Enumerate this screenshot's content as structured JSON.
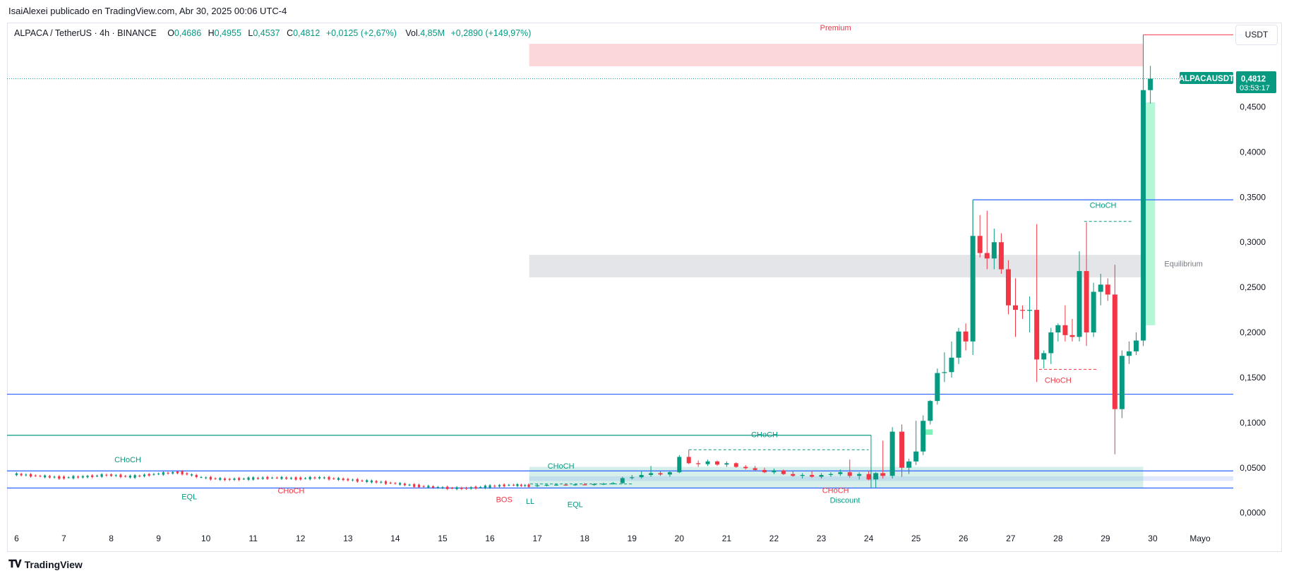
{
  "header": {
    "published": "IsaiAlexei publicado en TradingView.com, Abr 30, 2025 00:06 UTC-4"
  },
  "legend": {
    "symbol": "ALPACA / TetherUS · 4h · BINANCE",
    "o_key": "O",
    "o_val": "0,4686",
    "h_key": "H",
    "h_val": "0,4955",
    "l_key": "L",
    "l_val": "0,4537",
    "c_key": "C",
    "c_val": "0,4812",
    "change": "+0,0125 (+2,67%)",
    "vol_key": "Vol.",
    "vol_val": "4,85M",
    "vol_change": "+0,2890 (+149,97%)"
  },
  "currency_button": "USDT",
  "brand": {
    "name": "TradingView",
    "logo": "tv-logo-icon"
  },
  "colors": {
    "up": "#089981",
    "down": "#f23645",
    "accent": "#2962ff"
  },
  "chart_data": {
    "type": "candlestick",
    "symbol": "ALPACAUSDT",
    "timeframe": "4h",
    "y_ticks": [
      "0,4500",
      "0,4000",
      "0,3500",
      "0,3000",
      "0,2500",
      "0,2000",
      "0,1500",
      "0,1000",
      "0,0500",
      "0,0000"
    ],
    "y_tick_values": [
      0.45,
      0.4,
      0.35,
      0.3,
      0.25,
      0.2,
      0.15,
      0.1,
      0.05,
      0.0
    ],
    "ylim": [
      -0.012,
      0.52
    ],
    "x_ticks": [
      "6",
      "7",
      "8",
      "9",
      "10",
      "11",
      "12",
      "13",
      "14",
      "15",
      "16",
      "17",
      "18",
      "19",
      "20",
      "21",
      "22",
      "23",
      "24",
      "25",
      "26",
      "27",
      "28",
      "29",
      "30",
      "Mayo"
    ],
    "x_tick_days": [
      6,
      7,
      8,
      9,
      10,
      11,
      12,
      13,
      14,
      15,
      16,
      17,
      18,
      19,
      20,
      21,
      22,
      23,
      24,
      25,
      26,
      27,
      28,
      29,
      30,
      31
    ],
    "xlim_days": [
      5.8,
      31.7
    ],
    "last_price_tag": {
      "symbol": "ALPACAUSDT",
      "price": "0,4812",
      "countdown": "03:53:17",
      "value": 0.4812
    },
    "candles": [
      {
        "d": 17.0,
        "o": 0.03,
        "h": 0.032,
        "l": 0.0285,
        "c": 0.0305
      },
      {
        "d": 17.2,
        "o": 0.0305,
        "h": 0.032,
        "l": 0.0295,
        "c": 0.031
      },
      {
        "d": 17.4,
        "o": 0.031,
        "h": 0.0325,
        "l": 0.03,
        "c": 0.0312
      },
      {
        "d": 17.6,
        "o": 0.0312,
        "h": 0.0325,
        "l": 0.03,
        "c": 0.0308
      },
      {
        "d": 17.8,
        "o": 0.0308,
        "h": 0.0325,
        "l": 0.03,
        "c": 0.0315
      },
      {
        "d": 18.0,
        "o": 0.0315,
        "h": 0.033,
        "l": 0.0305,
        "c": 0.031
      },
      {
        "d": 18.2,
        "o": 0.031,
        "h": 0.033,
        "l": 0.03,
        "c": 0.0318
      },
      {
        "d": 18.4,
        "o": 0.0318,
        "h": 0.0335,
        "l": 0.0308,
        "c": 0.0322
      },
      {
        "d": 18.6,
        "o": 0.0322,
        "h": 0.034,
        "l": 0.0312,
        "c": 0.033
      },
      {
        "d": 18.8,
        "o": 0.033,
        "h": 0.04,
        "l": 0.032,
        "c": 0.0385
      },
      {
        "d": 19.0,
        "o": 0.0385,
        "h": 0.042,
        "l": 0.037,
        "c": 0.0395
      },
      {
        "d": 19.2,
        "o": 0.0395,
        "h": 0.046,
        "l": 0.038,
        "c": 0.042
      },
      {
        "d": 19.4,
        "o": 0.042,
        "h": 0.052,
        "l": 0.04,
        "c": 0.044
      },
      {
        "d": 19.6,
        "o": 0.044,
        "h": 0.047,
        "l": 0.041,
        "c": 0.0425
      },
      {
        "d": 19.8,
        "o": 0.0425,
        "h": 0.046,
        "l": 0.04,
        "c": 0.045
      },
      {
        "d": 20.0,
        "o": 0.045,
        "h": 0.064,
        "l": 0.044,
        "c": 0.062
      },
      {
        "d": 20.2,
        "o": 0.062,
        "h": 0.07,
        "l": 0.054,
        "c": 0.055
      },
      {
        "d": 20.4,
        "o": 0.055,
        "h": 0.058,
        "l": 0.051,
        "c": 0.054
      },
      {
        "d": 20.6,
        "o": 0.054,
        "h": 0.059,
        "l": 0.052,
        "c": 0.057
      },
      {
        "d": 20.8,
        "o": 0.057,
        "h": 0.058,
        "l": 0.052,
        "c": 0.0535
      },
      {
        "d": 21.0,
        "o": 0.0535,
        "h": 0.057,
        "l": 0.051,
        "c": 0.055
      },
      {
        "d": 21.2,
        "o": 0.055,
        "h": 0.056,
        "l": 0.05,
        "c": 0.051
      },
      {
        "d": 21.4,
        "o": 0.051,
        "h": 0.053,
        "l": 0.048,
        "c": 0.0495
      },
      {
        "d": 21.6,
        "o": 0.0495,
        "h": 0.052,
        "l": 0.046,
        "c": 0.0475
      },
      {
        "d": 21.8,
        "o": 0.0475,
        "h": 0.05,
        "l": 0.044,
        "c": 0.045
      },
      {
        "d": 22.0,
        "o": 0.045,
        "h": 0.049,
        "l": 0.043,
        "c": 0.047
      },
      {
        "d": 22.2,
        "o": 0.047,
        "h": 0.048,
        "l": 0.042,
        "c": 0.043
      },
      {
        "d": 22.4,
        "o": 0.043,
        "h": 0.046,
        "l": 0.04,
        "c": 0.041
      },
      {
        "d": 22.6,
        "o": 0.041,
        "h": 0.044,
        "l": 0.038,
        "c": 0.042
      },
      {
        "d": 22.8,
        "o": 0.042,
        "h": 0.046,
        "l": 0.039,
        "c": 0.04
      },
      {
        "d": 23.0,
        "o": 0.04,
        "h": 0.044,
        "l": 0.038,
        "c": 0.042
      },
      {
        "d": 23.2,
        "o": 0.042,
        "h": 0.045,
        "l": 0.04,
        "c": 0.043
      },
      {
        "d": 23.4,
        "o": 0.043,
        "h": 0.048,
        "l": 0.041,
        "c": 0.045
      },
      {
        "d": 23.6,
        "o": 0.045,
        "h": 0.059,
        "l": 0.039,
        "c": 0.041
      },
      {
        "d": 23.8,
        "o": 0.041,
        "h": 0.045,
        "l": 0.037,
        "c": 0.043
      },
      {
        "d": 24.0,
        "o": 0.043,
        "h": 0.046,
        "l": 0.036,
        "c": 0.037
      },
      {
        "d": 24.15,
        "o": 0.037,
        "h": 0.045,
        "l": 0.028,
        "c": 0.044
      },
      {
        "d": 24.3,
        "o": 0.044,
        "h": 0.08,
        "l": 0.038,
        "c": 0.041
      },
      {
        "d": 24.5,
        "o": 0.041,
        "h": 0.095,
        "l": 0.038,
        "c": 0.09
      },
      {
        "d": 24.7,
        "o": 0.09,
        "h": 0.098,
        "l": 0.04,
        "c": 0.05
      },
      {
        "d": 24.85,
        "o": 0.05,
        "h": 0.06,
        "l": 0.043,
        "c": 0.057
      },
      {
        "d": 25.0,
        "o": 0.057,
        "h": 0.102,
        "l": 0.053,
        "c": 0.068
      },
      {
        "d": 25.15,
        "o": 0.068,
        "h": 0.108,
        "l": 0.064,
        "c": 0.102
      },
      {
        "d": 25.3,
        "o": 0.102,
        "h": 0.125,
        "l": 0.098,
        "c": 0.124
      },
      {
        "d": 25.45,
        "o": 0.124,
        "h": 0.16,
        "l": 0.12,
        "c": 0.155
      },
      {
        "d": 25.6,
        "o": 0.155,
        "h": 0.178,
        "l": 0.145,
        "c": 0.156
      },
      {
        "d": 25.75,
        "o": 0.156,
        "h": 0.19,
        "l": 0.15,
        "c": 0.172
      },
      {
        "d": 25.9,
        "o": 0.172,
        "h": 0.205,
        "l": 0.165,
        "c": 0.201
      },
      {
        "d": 26.05,
        "o": 0.201,
        "h": 0.21,
        "l": 0.18,
        "c": 0.19
      },
      {
        "d": 26.2,
        "o": 0.19,
        "h": 0.346,
        "l": 0.175,
        "c": 0.307
      },
      {
        "d": 26.35,
        "o": 0.307,
        "h": 0.33,
        "l": 0.283,
        "c": 0.288
      },
      {
        "d": 26.5,
        "o": 0.288,
        "h": 0.335,
        "l": 0.27,
        "c": 0.282
      },
      {
        "d": 26.65,
        "o": 0.282,
        "h": 0.315,
        "l": 0.27,
        "c": 0.3
      },
      {
        "d": 26.8,
        "o": 0.3,
        "h": 0.31,
        "l": 0.265,
        "c": 0.27
      },
      {
        "d": 26.95,
        "o": 0.27,
        "h": 0.28,
        "l": 0.22,
        "c": 0.23
      },
      {
        "d": 27.1,
        "o": 0.23,
        "h": 0.26,
        "l": 0.195,
        "c": 0.225
      },
      {
        "d": 27.25,
        "o": 0.225,
        "h": 0.23,
        "l": 0.215,
        "c": 0.224
      },
      {
        "d": 27.4,
        "o": 0.224,
        "h": 0.24,
        "l": 0.2,
        "c": 0.225
      },
      {
        "d": 27.55,
        "o": 0.225,
        "h": 0.32,
        "l": 0.145,
        "c": 0.17
      },
      {
        "d": 27.7,
        "o": 0.17,
        "h": 0.18,
        "l": 0.16,
        "c": 0.177
      },
      {
        "d": 27.85,
        "o": 0.177,
        "h": 0.205,
        "l": 0.165,
        "c": 0.2
      },
      {
        "d": 28.0,
        "o": 0.2,
        "h": 0.21,
        "l": 0.19,
        "c": 0.208
      },
      {
        "d": 28.15,
        "o": 0.208,
        "h": 0.23,
        "l": 0.19,
        "c": 0.197
      },
      {
        "d": 28.3,
        "o": 0.197,
        "h": 0.215,
        "l": 0.19,
        "c": 0.195
      },
      {
        "d": 28.45,
        "o": 0.195,
        "h": 0.29,
        "l": 0.19,
        "c": 0.268
      },
      {
        "d": 28.6,
        "o": 0.268,
        "h": 0.322,
        "l": 0.185,
        "c": 0.2
      },
      {
        "d": 28.75,
        "o": 0.2,
        "h": 0.255,
        "l": 0.195,
        "c": 0.245
      },
      {
        "d": 28.9,
        "o": 0.245,
        "h": 0.265,
        "l": 0.23,
        "c": 0.253
      },
      {
        "d": 29.05,
        "o": 0.253,
        "h": 0.26,
        "l": 0.235,
        "c": 0.242
      },
      {
        "d": 29.2,
        "o": 0.242,
        "h": 0.275,
        "l": 0.065,
        "c": 0.115
      },
      {
        "d": 29.35,
        "o": 0.115,
        "h": 0.18,
        "l": 0.105,
        "c": 0.174
      },
      {
        "d": 29.5,
        "o": 0.174,
        "h": 0.19,
        "l": 0.165,
        "c": 0.179
      },
      {
        "d": 29.65,
        "o": 0.179,
        "h": 0.2,
        "l": 0.175,
        "c": 0.191
      },
      {
        "d": 29.8,
        "o": 0.191,
        "h": 0.47,
        "l": 0.185,
        "c": 0.4686
      },
      {
        "d": 29.95,
        "o": 0.4686,
        "h": 0.4955,
        "l": 0.4537,
        "c": 0.4812
      }
    ],
    "early_path": [
      [
        6.0,
        0.043
      ],
      [
        6.5,
        0.041
      ],
      [
        7.0,
        0.039
      ],
      [
        7.5,
        0.04
      ],
      [
        8.0,
        0.042
      ],
      [
        8.5,
        0.04
      ],
      [
        9.0,
        0.043
      ],
      [
        9.5,
        0.045
      ],
      [
        10.0,
        0.039
      ],
      [
        10.5,
        0.037
      ],
      [
        11.0,
        0.038
      ],
      [
        11.5,
        0.039
      ],
      [
        12.0,
        0.038
      ],
      [
        12.5,
        0.039
      ],
      [
        13.0,
        0.037
      ],
      [
        13.5,
        0.035
      ],
      [
        14.0,
        0.033
      ],
      [
        14.5,
        0.03
      ],
      [
        15.0,
        0.028
      ],
      [
        15.5,
        0.027
      ],
      [
        16.0,
        0.029
      ],
      [
        16.5,
        0.031
      ],
      [
        16.9,
        0.03
      ]
    ],
    "levels": [
      {
        "name": "blue-level-high",
        "value": 0.347,
        "x0": 26.2,
        "x1": 31.7,
        "color": "#2962ff"
      },
      {
        "name": "blue-level-mid",
        "value": 0.1315,
        "x0": 5.8,
        "x1": 31.7,
        "color": "#2962ff"
      },
      {
        "name": "teal-level",
        "value": 0.086,
        "x0": 5.8,
        "x1": 24.05,
        "color": "#089981"
      },
      {
        "name": "blue-level-low",
        "value": 0.0465,
        "x0": 5.8,
        "x1": 31.7,
        "color": "#2962ff"
      },
      {
        "name": "blue-level-base",
        "value": 0.0275,
        "x0": 5.8,
        "x1": 31.7,
        "color": "#2962ff"
      }
    ],
    "annotations": [
      {
        "text": "Premium",
        "d": 23.3,
        "v": 0.535,
        "color": "#f23645"
      },
      {
        "text": "Equilibrium",
        "d": 30.65,
        "v": 0.273,
        "color": "#787b86"
      },
      {
        "text": "Discount",
        "d": 23.5,
        "v": 0.011,
        "color": "#089981"
      },
      {
        "text": "CHoCH",
        "d": 8.35,
        "v": 0.056,
        "color": "#089981"
      },
      {
        "text": "EQL",
        "d": 9.65,
        "v": 0.015,
        "color": "#089981"
      },
      {
        "text": "CHoCH",
        "d": 11.8,
        "v": 0.0215,
        "color": "#f23645"
      },
      {
        "text": "BOS",
        "d": 16.3,
        "v": 0.012,
        "color": "#f23645"
      },
      {
        "text": "LL",
        "d": 16.85,
        "v": 0.01,
        "color": "#089981"
      },
      {
        "text": "EQL",
        "d": 17.8,
        "v": 0.0065,
        "color": "#089981"
      },
      {
        "text": "CHoCH",
        "d": 17.5,
        "v": 0.049,
        "color": "#089981"
      },
      {
        "text": "CHoCH",
        "d": 21.8,
        "v": 0.084,
        "color": "#089981"
      },
      {
        "text": "CHoCH",
        "d": 23.3,
        "v": 0.022,
        "color": "#f23645"
      },
      {
        "text": "CHoCH",
        "d": 28.95,
        "v": 0.338,
        "color": "#089981"
      },
      {
        "text": "CHoCH",
        "d": 28.0,
        "v": 0.144,
        "color": "#f23645"
      }
    ],
    "zones": [
      {
        "name": "premium-zone",
        "x0": 16.83,
        "x1": 29.8,
        "y0": 0.495,
        "y1": 0.52,
        "fill": "#f23645",
        "opacity": 0.2
      },
      {
        "name": "equilibrium-zone",
        "x0": 16.83,
        "x1": 29.8,
        "y0": 0.261,
        "y1": 0.286,
        "fill": "#b2b5be",
        "opacity": 0.35
      },
      {
        "name": "discount-zone",
        "x0": 16.83,
        "x1": 29.8,
        "y0": 0.027,
        "y1": 0.051,
        "fill": "#089981",
        "opacity": 0.16
      },
      {
        "name": "rally-box",
        "x0": 29.85,
        "x1": 30.05,
        "y0": 0.208,
        "y1": 0.455,
        "fill": "#00e676",
        "opacity": 0.3
      }
    ],
    "dashed_lines": [
      {
        "x0": 20.2,
        "x1": 24.0,
        "v": 0.07,
        "color": "#089981"
      },
      {
        "x0": 28.55,
        "x1": 29.55,
        "v": 0.323,
        "color": "#089981"
      },
      {
        "x0": 27.6,
        "x1": 28.85,
        "v": 0.159,
        "color": "#f23645"
      },
      {
        "x0": 16.85,
        "x1": 19.0,
        "v": 0.032,
        "color": "#089981"
      }
    ]
  }
}
